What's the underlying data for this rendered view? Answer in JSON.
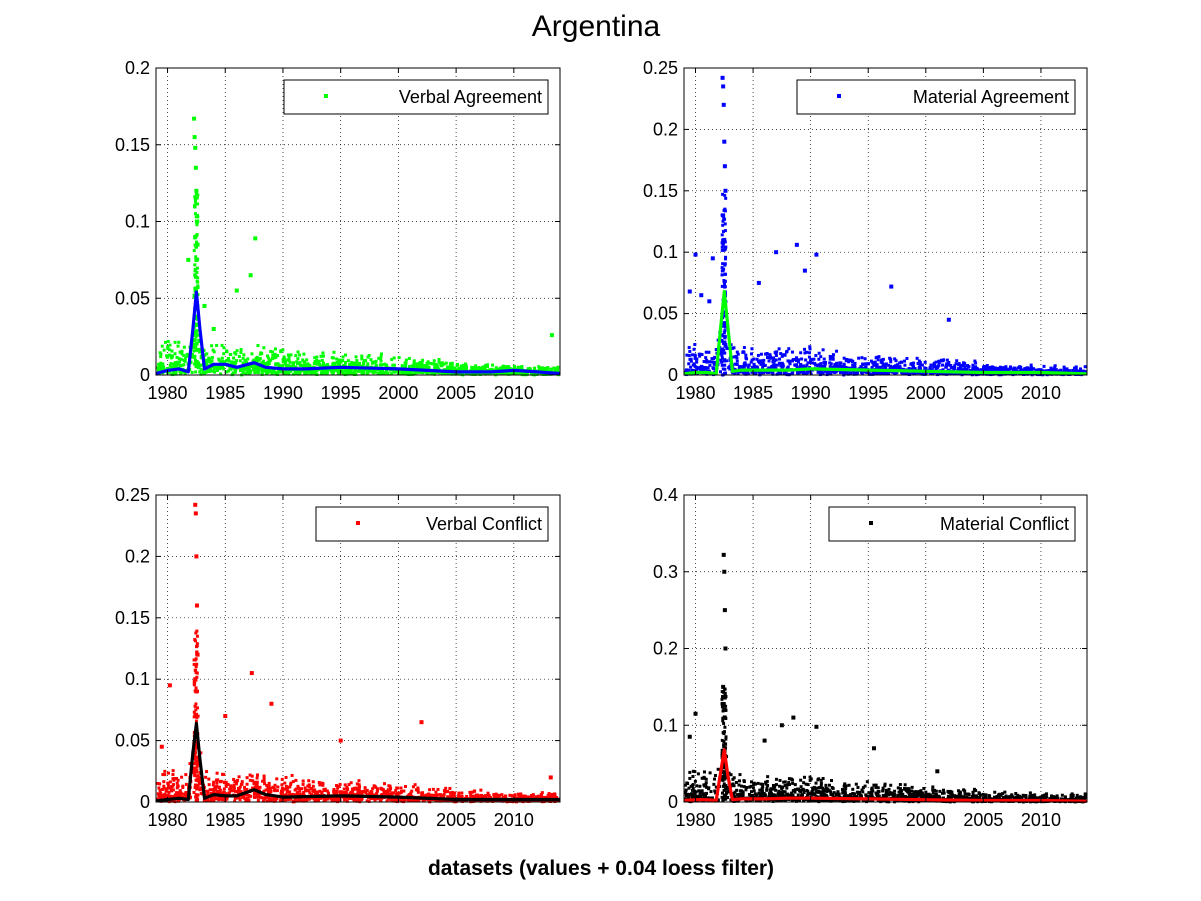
{
  "figure": {
    "title": "Argentina",
    "xlabel": "datasets (values + 0.04 loess filter)"
  },
  "chart_data": [
    {
      "type": "scatter",
      "legend": "Verbal Agreement",
      "legend_position": "top-right",
      "grid": true,
      "point_color": "#00ff00",
      "line_color": "#0000ff",
      "xlim": [
        1979,
        2014
      ],
      "ylim": [
        0,
        0.2
      ],
      "xticks": [
        1980,
        1985,
        1990,
        1995,
        2000,
        2005,
        2010
      ],
      "yticks": [
        0,
        0.05,
        0.1,
        0.15,
        0.2
      ],
      "ytick_labels": [
        "0",
        "0.05",
        "0.1",
        "0.15",
        "0.2"
      ],
      "series": [
        {
          "name": "Verbal Agreement",
          "kind": "points",
          "x": [
            1982.3,
            1982.35,
            1982.4,
            1982.45,
            1982.5,
            1982.55,
            1982.6,
            1982.4,
            1982.5,
            1981.8,
            1987.6,
            1986.0,
            1987.2,
            2013.3,
            1983.2,
            1984.0
          ],
          "y": [
            0.167,
            0.155,
            0.148,
            0.135,
            0.12,
            0.1,
            0.085,
            0.09,
            0.075,
            0.075,
            0.089,
            0.055,
            0.065,
            0.026,
            0.045,
            0.03
          ]
        },
        {
          "name": "loess filter",
          "kind": "line",
          "x": [
            1979,
            1980,
            1981,
            1981.8,
            1982.2,
            1982.5,
            1982.8,
            1983.2,
            1984,
            1985,
            1986,
            1987.5,
            1988.5,
            1990,
            1992,
            1995,
            2000,
            2005,
            2008,
            2010,
            2012,
            2014
          ],
          "y": [
            0.001,
            0.003,
            0.004,
            0.002,
            0.03,
            0.054,
            0.03,
            0.004,
            0.007,
            0.007,
            0.005,
            0.008,
            0.005,
            0.004,
            0.004,
            0.005,
            0.004,
            0.002,
            0.002,
            0.003,
            0.002,
            0.001
          ]
        }
      ]
    },
    {
      "type": "scatter",
      "legend": "Material Agreement",
      "legend_position": "top-right",
      "grid": true,
      "point_color": "#0000ff",
      "line_color": "#00ff00",
      "xlim": [
        1979,
        2014
      ],
      "ylim": [
        0,
        0.25
      ],
      "xticks": [
        1980,
        1985,
        1990,
        1995,
        2000,
        2005,
        2010
      ],
      "yticks": [
        0,
        0.05,
        0.1,
        0.15,
        0.2,
        0.25
      ],
      "ytick_labels": [
        "0",
        "0.05",
        "0.1",
        "0.15",
        "0.2",
        "0.25"
      ],
      "series": [
        {
          "name": "Material Agreement",
          "kind": "points",
          "x": [
            1982.35,
            1982.4,
            1982.45,
            1982.5,
            1982.55,
            1982.6,
            1982.4,
            1982.5,
            1980.0,
            1980.5,
            1981.5,
            1981.2,
            1988.8,
            1990.5,
            1987.0,
            1985.5,
            1989.5,
            1997.0,
            2002.0,
            1979.5
          ],
          "y": [
            0.242,
            0.235,
            0.22,
            0.19,
            0.17,
            0.15,
            0.13,
            0.11,
            0.098,
            0.065,
            0.095,
            0.06,
            0.106,
            0.098,
            0.1,
            0.075,
            0.085,
            0.072,
            0.045,
            0.068
          ]
        },
        {
          "name": "loess filter",
          "kind": "line",
          "x": [
            1979,
            1980,
            1981,
            1981.8,
            1982.2,
            1982.5,
            1982.8,
            1983.2,
            1984,
            1986,
            1988,
            1990,
            1995,
            2000,
            2005,
            2010,
            2014
          ],
          "y": [
            0.001,
            0.002,
            0.002,
            0.001,
            0.04,
            0.068,
            0.04,
            0.003,
            0.004,
            0.004,
            0.004,
            0.005,
            0.004,
            0.003,
            0.002,
            0.002,
            0.001
          ]
        }
      ]
    },
    {
      "type": "scatter",
      "legend": "Verbal Conflict",
      "legend_position": "top-right",
      "grid": true,
      "point_color": "#ff0000",
      "line_color": "#000000",
      "xlim": [
        1979,
        2014
      ],
      "ylim": [
        0,
        0.25
      ],
      "xticks": [
        1980,
        1985,
        1990,
        1995,
        2000,
        2005,
        2010
      ],
      "yticks": [
        0,
        0.05,
        0.1,
        0.15,
        0.2,
        0.25
      ],
      "ytick_labels": [
        "0",
        "0.05",
        "0.1",
        "0.15",
        "0.2",
        "0.25"
      ],
      "series": [
        {
          "name": "Verbal Conflict",
          "kind": "points",
          "x": [
            1982.4,
            1982.45,
            1982.5,
            1982.55,
            1982.6,
            1982.4,
            1982.5,
            1980.2,
            1987.3,
            1989.0,
            2002.0,
            1995.0,
            1985.0,
            2013.2,
            1979.5
          ],
          "y": [
            0.242,
            0.235,
            0.2,
            0.16,
            0.12,
            0.1,
            0.09,
            0.095,
            0.105,
            0.08,
            0.065,
            0.05,
            0.07,
            0.02,
            0.045
          ]
        },
        {
          "name": "loess filter",
          "kind": "line",
          "x": [
            1979,
            1980,
            1981,
            1981.8,
            1982.2,
            1982.5,
            1982.8,
            1983.2,
            1984,
            1985,
            1986,
            1987.5,
            1988.5,
            1990,
            1995,
            2000,
            2005,
            2010,
            2014
          ],
          "y": [
            0.001,
            0.002,
            0.003,
            0.002,
            0.04,
            0.064,
            0.035,
            0.003,
            0.006,
            0.005,
            0.005,
            0.01,
            0.006,
            0.004,
            0.005,
            0.004,
            0.002,
            0.002,
            0.002
          ]
        }
      ]
    },
    {
      "type": "scatter",
      "legend": "Material Conflict",
      "legend_position": "top-right",
      "grid": true,
      "point_color": "#000000",
      "line_color": "#ff0000",
      "xlim": [
        1979,
        2014
      ],
      "ylim": [
        0,
        0.4
      ],
      "xticks": [
        1980,
        1985,
        1990,
        1995,
        2000,
        2005,
        2010
      ],
      "yticks": [
        0,
        0.1,
        0.2,
        0.3,
        0.4
      ],
      "ytick_labels": [
        "0",
        "0.1",
        "0.2",
        "0.3",
        "0.4"
      ],
      "series": [
        {
          "name": "Material Conflict",
          "kind": "points",
          "x": [
            1982.45,
            1982.5,
            1982.55,
            1982.6,
            1982.4,
            1982.5,
            1980.0,
            1979.5,
            1988.5,
            1990.5,
            1986.0,
            1987.5,
            1995.5,
            2001.0
          ],
          "y": [
            0.322,
            0.3,
            0.25,
            0.2,
            0.15,
            0.12,
            0.115,
            0.085,
            0.11,
            0.098,
            0.08,
            0.1,
            0.07,
            0.04
          ]
        },
        {
          "name": "loess filter",
          "kind": "line",
          "x": [
            1979,
            1980,
            1981,
            1981.8,
            1982.2,
            1982.5,
            1982.8,
            1983.2,
            1984,
            1986,
            1988,
            1990,
            1995,
            2000,
            2005,
            2010,
            2014
          ],
          "y": [
            0.002,
            0.003,
            0.003,
            0.002,
            0.04,
            0.068,
            0.035,
            0.003,
            0.004,
            0.004,
            0.005,
            0.005,
            0.004,
            0.003,
            0.002,
            0.002,
            0.001
          ]
        }
      ]
    }
  ]
}
